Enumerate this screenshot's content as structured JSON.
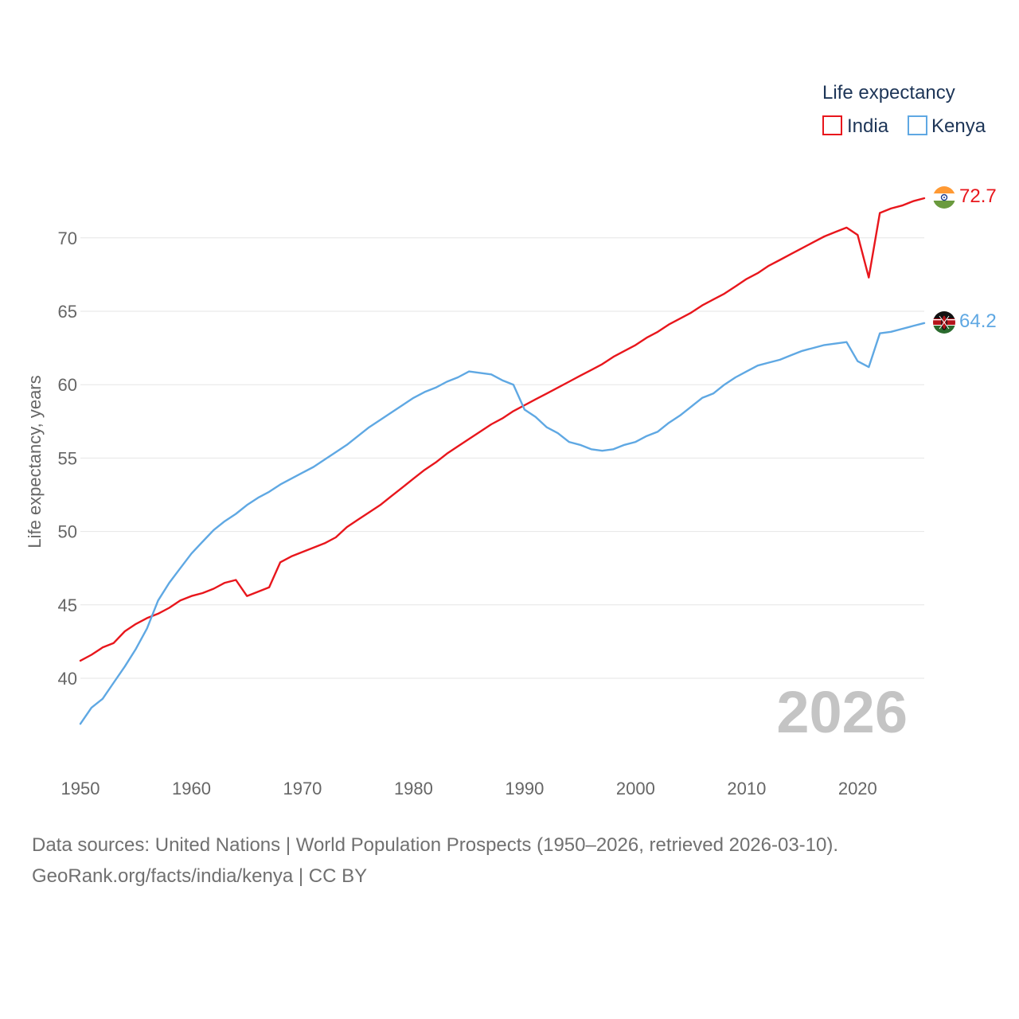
{
  "chart_data": {
    "type": "line",
    "title": "",
    "legend_title": "Life expectancy",
    "legend_position": "top-right",
    "ylabel": "Life expectancy, years",
    "xlabel": "",
    "xlim": [
      1950,
      2026
    ],
    "ylim": [
      35,
      75
    ],
    "x_ticks": [
      1950,
      1960,
      1970,
      1980,
      1990,
      2000,
      2010,
      2020
    ],
    "y_ticks": [
      40,
      45,
      50,
      55,
      60,
      65,
      70
    ],
    "grid": true,
    "annotation": "2026",
    "x": [
      1950,
      1951,
      1952,
      1953,
      1954,
      1955,
      1956,
      1957,
      1958,
      1959,
      1960,
      1961,
      1962,
      1963,
      1964,
      1965,
      1966,
      1967,
      1968,
      1969,
      1970,
      1971,
      1972,
      1973,
      1974,
      1975,
      1976,
      1977,
      1978,
      1979,
      1980,
      1981,
      1982,
      1983,
      1984,
      1985,
      1986,
      1987,
      1988,
      1989,
      1990,
      1991,
      1992,
      1993,
      1994,
      1995,
      1996,
      1997,
      1998,
      1999,
      2000,
      2001,
      2002,
      2003,
      2004,
      2005,
      2006,
      2007,
      2008,
      2009,
      2010,
      2011,
      2012,
      2013,
      2014,
      2015,
      2016,
      2017,
      2018,
      2019,
      2020,
      2021,
      2022,
      2023,
      2024,
      2025,
      2026
    ],
    "series": [
      {
        "name": "India",
        "color": "#e8161c",
        "end_label": "72.7",
        "values": [
          41.2,
          41.6,
          42.1,
          42.4,
          43.2,
          43.7,
          44.1,
          44.4,
          44.8,
          45.3,
          45.6,
          45.8,
          46.1,
          46.5,
          46.7,
          45.6,
          45.9,
          46.2,
          47.9,
          48.3,
          48.6,
          48.9,
          49.2,
          49.6,
          50.3,
          50.8,
          51.3,
          51.8,
          52.4,
          53.0,
          53.6,
          54.2,
          54.7,
          55.3,
          55.8,
          56.3,
          56.8,
          57.3,
          57.7,
          58.2,
          58.6,
          59.0,
          59.4,
          59.8,
          60.2,
          60.6,
          61.0,
          61.4,
          61.9,
          62.3,
          62.7,
          63.2,
          63.6,
          64.1,
          64.5,
          64.9,
          65.4,
          65.8,
          66.2,
          66.7,
          67.2,
          67.6,
          68.1,
          68.5,
          68.9,
          69.3,
          69.7,
          70.1,
          70.4,
          70.7,
          70.2,
          67.3,
          71.7,
          72.0,
          72.2,
          72.5,
          72.7
        ]
      },
      {
        "name": "Kenya",
        "color": "#5fa8e3",
        "end_label": "64.2",
        "values": [
          36.9,
          38.0,
          38.6,
          39.7,
          40.8,
          42.0,
          43.4,
          45.3,
          46.5,
          47.5,
          48.5,
          49.3,
          50.1,
          50.7,
          51.2,
          51.8,
          52.3,
          52.7,
          53.2,
          53.6,
          54.0,
          54.4,
          54.9,
          55.4,
          55.9,
          56.5,
          57.1,
          57.6,
          58.1,
          58.6,
          59.1,
          59.5,
          59.8,
          60.2,
          60.5,
          60.9,
          60.8,
          60.7,
          60.3,
          60.0,
          58.3,
          57.8,
          57.1,
          56.7,
          56.1,
          55.9,
          55.6,
          55.5,
          55.6,
          55.9,
          56.1,
          56.5,
          56.8,
          57.4,
          57.9,
          58.5,
          59.1,
          59.4,
          60.0,
          60.5,
          60.9,
          61.3,
          61.5,
          61.7,
          62.0,
          62.3,
          62.5,
          62.7,
          62.8,
          62.9,
          61.6,
          61.2,
          63.5,
          63.6,
          63.8,
          64.0,
          64.2
        ]
      }
    ]
  },
  "footer": {
    "line1": "Data sources: United Nations | World Population Prospects (1950–2026, retrieved 2026-03-10).",
    "line2": "GeoRank.org/facts/india/kenya | CC BY"
  }
}
